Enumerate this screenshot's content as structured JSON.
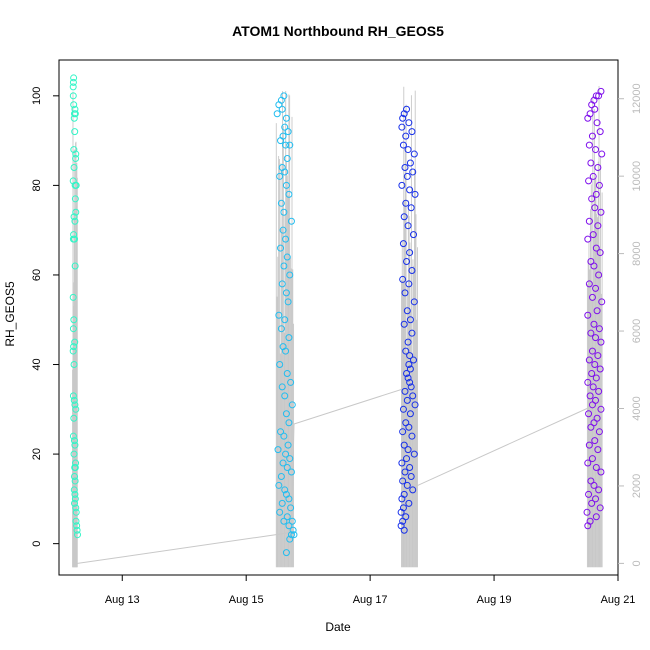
{
  "chart_data": {
    "type": "scatter",
    "title": "ATOM1 Northbound RH_GEOS5",
    "xlabel": "Date",
    "ylabel": "RH_GEOS5",
    "x_axis": {
      "scale": "date",
      "range": [
        "2016-08-11T23:30",
        "2016-08-21T00:00"
      ],
      "ticks": [
        "2016-08-13",
        "2016-08-15",
        "2016-08-17",
        "2016-08-19",
        "2016-08-21"
      ],
      "tick_labels": [
        "Aug 13",
        "Aug 15",
        "Aug 17",
        "Aug 19",
        "Aug 21"
      ]
    },
    "y_axis": {
      "range": [
        -7,
        108
      ],
      "ticks": [
        0,
        20,
        40,
        60,
        80,
        100
      ]
    },
    "y2_axis": {
      "range": [
        -300,
        13000
      ],
      "ticks": [
        0,
        2000,
        4000,
        6000,
        8000,
        10000,
        12000
      ],
      "color": "#bbbbbb",
      "series": "altitude profile (gray lines)"
    },
    "grid": false,
    "legend": "none",
    "series": [
      {
        "color": "#33f5c7",
        "time_range": [
          "2016-08-12T05:00",
          "2016-08-12T06:40"
        ],
        "rh_range": [
          2,
          104
        ],
        "points": [
          [
            0.0,
            102
          ],
          [
            0.05,
            103
          ],
          [
            0.1,
            104
          ],
          [
            0.02,
            100
          ],
          [
            0.12,
            98
          ],
          [
            0.3,
            96
          ],
          [
            0.25,
            95
          ],
          [
            0.4,
            97
          ],
          [
            0.5,
            96
          ],
          [
            0.35,
            92
          ],
          [
            0.15,
            88
          ],
          [
            0.6,
            87
          ],
          [
            0.55,
            86
          ],
          [
            0.2,
            84
          ],
          [
            0.0,
            81
          ],
          [
            0.45,
            80
          ],
          [
            0.7,
            80
          ],
          [
            0.5,
            77
          ],
          [
            0.6,
            74
          ],
          [
            0.2,
            73
          ],
          [
            0.4,
            72
          ],
          [
            0.1,
            69
          ],
          [
            0.05,
            68
          ],
          [
            0.3,
            68
          ],
          [
            0.45,
            62
          ],
          [
            0.0,
            55
          ],
          [
            0.15,
            50
          ],
          [
            0.05,
            48
          ],
          [
            0.35,
            45
          ],
          [
            0.1,
            44
          ],
          [
            0.0,
            43
          ],
          [
            0.2,
            40
          ],
          [
            0.05,
            33
          ],
          [
            0.25,
            32
          ],
          [
            0.4,
            31
          ],
          [
            0.6,
            30
          ],
          [
            0.15,
            28
          ],
          [
            0.05,
            24
          ],
          [
            0.3,
            23
          ],
          [
            0.4,
            22
          ],
          [
            0.2,
            20
          ],
          [
            0.55,
            18
          ],
          [
            0.35,
            17
          ],
          [
            0.5,
            17
          ],
          [
            0.3,
            15
          ],
          [
            0.45,
            14
          ],
          [
            0.25,
            12
          ],
          [
            0.4,
            11
          ],
          [
            0.5,
            10
          ],
          [
            0.3,
            9
          ],
          [
            0.6,
            8
          ],
          [
            0.7,
            7
          ],
          [
            0.65,
            5
          ],
          [
            0.8,
            4
          ],
          [
            0.9,
            3
          ],
          [
            1.0,
            2
          ]
        ]
      },
      {
        "color": "#22bdf0",
        "time_range": [
          "2016-08-15T12:00",
          "2016-08-15T18:30"
        ],
        "rh_range": [
          -2,
          100
        ],
        "points": [
          [
            0.0,
            96
          ],
          [
            0.1,
            98
          ],
          [
            0.25,
            99
          ],
          [
            0.4,
            100
          ],
          [
            0.3,
            97
          ],
          [
            0.55,
            95
          ],
          [
            0.45,
            93
          ],
          [
            0.65,
            92
          ],
          [
            0.2,
            90
          ],
          [
            0.35,
            91
          ],
          [
            0.5,
            89
          ],
          [
            0.75,
            89
          ],
          [
            0.6,
            86
          ],
          [
            0.3,
            84
          ],
          [
            0.45,
            83
          ],
          [
            0.15,
            82
          ],
          [
            0.55,
            80
          ],
          [
            0.7,
            78
          ],
          [
            0.25,
            76
          ],
          [
            0.4,
            74
          ],
          [
            0.85,
            72
          ],
          [
            0.35,
            70
          ],
          [
            0.5,
            68
          ],
          [
            0.2,
            66
          ],
          [
            0.6,
            64
          ],
          [
            0.4,
            62
          ],
          [
            0.75,
            60
          ],
          [
            0.3,
            58
          ],
          [
            0.55,
            56
          ],
          [
            0.65,
            54
          ],
          [
            0.1,
            51
          ],
          [
            0.45,
            50
          ],
          [
            0.25,
            48
          ],
          [
            0.7,
            46
          ],
          [
            0.35,
            44
          ],
          [
            0.5,
            43
          ],
          [
            0.15,
            40
          ],
          [
            0.6,
            38
          ],
          [
            0.8,
            36
          ],
          [
            0.3,
            35
          ],
          [
            0.45,
            33
          ],
          [
            0.9,
            31
          ],
          [
            0.55,
            29
          ],
          [
            0.7,
            27
          ],
          [
            0.2,
            25
          ],
          [
            0.4,
            24
          ],
          [
            0.65,
            22
          ],
          [
            0.05,
            21
          ],
          [
            0.5,
            20
          ],
          [
            0.75,
            19
          ],
          [
            0.35,
            18
          ],
          [
            0.6,
            17
          ],
          [
            0.85,
            16
          ],
          [
            0.25,
            15
          ],
          [
            0.1,
            13
          ],
          [
            0.45,
            12
          ],
          [
            0.55,
            11
          ],
          [
            0.7,
            10
          ],
          [
            0.3,
            9
          ],
          [
            0.8,
            8
          ],
          [
            0.15,
            7
          ],
          [
            0.6,
            6
          ],
          [
            0.4,
            5
          ],
          [
            0.9,
            5
          ],
          [
            0.7,
            4
          ],
          [
            0.95,
            3
          ],
          [
            0.85,
            2
          ],
          [
            1.0,
            2
          ],
          [
            0.75,
            1
          ],
          [
            0.55,
            -2
          ]
        ]
      },
      {
        "color": "#1730ea",
        "time_range": [
          "2016-08-17T12:00",
          "2016-08-17T18:00"
        ],
        "rh_range": [
          3,
          98
        ],
        "points": [
          [
            0.05,
            93
          ],
          [
            0.1,
            95
          ],
          [
            0.2,
            96
          ],
          [
            0.35,
            97
          ],
          [
            0.5,
            94
          ],
          [
            0.7,
            92
          ],
          [
            0.3,
            91
          ],
          [
            0.15,
            89
          ],
          [
            0.45,
            88
          ],
          [
            0.85,
            87
          ],
          [
            0.6,
            85
          ],
          [
            0.25,
            84
          ],
          [
            0.75,
            83
          ],
          [
            0.4,
            82
          ],
          [
            0.05,
            80
          ],
          [
            0.55,
            79
          ],
          [
            0.9,
            78
          ],
          [
            0.3,
            76
          ],
          [
            0.65,
            75
          ],
          [
            0.2,
            73
          ],
          [
            0.45,
            71
          ],
          [
            0.8,
            69
          ],
          [
            0.15,
            67
          ],
          [
            0.55,
            65
          ],
          [
            0.35,
            63
          ],
          [
            0.7,
            61
          ],
          [
            0.1,
            59
          ],
          [
            0.5,
            58
          ],
          [
            0.25,
            56
          ],
          [
            0.85,
            54
          ],
          [
            0.4,
            52
          ],
          [
            0.6,
            50
          ],
          [
            0.2,
            49
          ],
          [
            0.7,
            47
          ],
          [
            0.45,
            45
          ],
          [
            0.3,
            43
          ],
          [
            0.55,
            42
          ],
          [
            0.8,
            41
          ],
          [
            0.5,
            40
          ],
          [
            0.6,
            39
          ],
          [
            0.35,
            38
          ],
          [
            0.45,
            37
          ],
          [
            0.55,
            36
          ],
          [
            0.65,
            35
          ],
          [
            0.25,
            34
          ],
          [
            0.75,
            33
          ],
          [
            0.4,
            32
          ],
          [
            0.9,
            31
          ],
          [
            0.15,
            30
          ],
          [
            0.6,
            29
          ],
          [
            0.3,
            27
          ],
          [
            0.5,
            26
          ],
          [
            0.1,
            25
          ],
          [
            0.7,
            24
          ],
          [
            0.2,
            22
          ],
          [
            0.45,
            21
          ],
          [
            0.85,
            20
          ],
          [
            0.35,
            19
          ],
          [
            0.05,
            18
          ],
          [
            0.55,
            17
          ],
          [
            0.25,
            16
          ],
          [
            0.65,
            15
          ],
          [
            0.1,
            14
          ],
          [
            0.4,
            13
          ],
          [
            0.75,
            12
          ],
          [
            0.2,
            11
          ],
          [
            0.05,
            10
          ],
          [
            0.5,
            9
          ],
          [
            0.15,
            8
          ],
          [
            0.0,
            7
          ],
          [
            0.3,
            6
          ],
          [
            0.1,
            5
          ],
          [
            0.0,
            4
          ],
          [
            0.2,
            3
          ]
        ]
      },
      {
        "color": "#7f10ec",
        "time_range": [
          "2016-08-20T12:00",
          "2016-08-20T18:00"
        ],
        "rh_range": [
          4,
          102
        ],
        "points": [
          [
            0.3,
            98
          ],
          [
            0.45,
            99
          ],
          [
            0.6,
            100
          ],
          [
            0.75,
            100
          ],
          [
            0.9,
            101
          ],
          [
            0.5,
            97
          ],
          [
            0.2,
            96
          ],
          [
            0.05,
            95
          ],
          [
            0.65,
            94
          ],
          [
            0.85,
            92
          ],
          [
            0.35,
            91
          ],
          [
            0.15,
            89
          ],
          [
            0.55,
            88
          ],
          [
            0.95,
            87
          ],
          [
            0.25,
            85
          ],
          [
            0.7,
            84
          ],
          [
            0.4,
            82
          ],
          [
            0.1,
            81
          ],
          [
            0.8,
            80
          ],
          [
            0.6,
            78
          ],
          [
            0.3,
            77
          ],
          [
            0.5,
            75
          ],
          [
            0.9,
            74
          ],
          [
            0.15,
            72
          ],
          [
            0.7,
            71
          ],
          [
            0.4,
            69
          ],
          [
            0.05,
            68
          ],
          [
            0.6,
            66
          ],
          [
            0.85,
            65
          ],
          [
            0.25,
            63
          ],
          [
            0.45,
            62
          ],
          [
            0.75,
            60
          ],
          [
            0.15,
            58
          ],
          [
            0.55,
            57
          ],
          [
            0.35,
            55
          ],
          [
            0.95,
            54
          ],
          [
            0.65,
            52
          ],
          [
            0.05,
            51
          ],
          [
            0.45,
            49
          ],
          [
            0.8,
            48
          ],
          [
            0.25,
            47
          ],
          [
            0.55,
            46
          ],
          [
            0.9,
            45
          ],
          [
            0.35,
            43
          ],
          [
            0.7,
            42
          ],
          [
            0.15,
            41
          ],
          [
            0.5,
            40
          ],
          [
            0.85,
            39
          ],
          [
            0.3,
            38
          ],
          [
            0.6,
            37
          ],
          [
            0.05,
            36
          ],
          [
            0.4,
            35
          ],
          [
            0.75,
            34
          ],
          [
            0.2,
            33
          ],
          [
            0.55,
            32
          ],
          [
            0.35,
            31
          ],
          [
            0.9,
            30
          ],
          [
            0.1,
            29
          ],
          [
            0.65,
            28
          ],
          [
            0.45,
            27
          ],
          [
            0.25,
            26
          ],
          [
            0.8,
            25
          ],
          [
            0.5,
            23
          ],
          [
            0.15,
            22
          ],
          [
            0.7,
            21
          ],
          [
            0.35,
            19
          ],
          [
            0.05,
            18
          ],
          [
            0.6,
            17
          ],
          [
            0.9,
            16
          ],
          [
            0.25,
            14
          ],
          [
            0.45,
            13
          ],
          [
            0.75,
            12
          ],
          [
            0.1,
            11
          ],
          [
            0.55,
            10
          ],
          [
            0.3,
            9
          ],
          [
            0.85,
            8
          ],
          [
            0.0,
            7
          ],
          [
            0.6,
            6
          ],
          [
            0.2,
            5
          ],
          [
            0.05,
            4
          ]
        ]
      }
    ],
    "altitude_track": [
      [
        "2016-08-12T06:40",
        0
      ],
      [
        "2016-08-15T17:30",
        800
      ],
      [
        "2016-08-15T18:30",
        3600
      ],
      [
        "2016-08-17T12:30",
        4500
      ],
      [
        "2016-08-17T18:00",
        2000
      ],
      [
        "2016-08-20T12:00",
        4000
      ],
      [
        "2016-08-20T18:00",
        4200
      ]
    ],
    "altitude_profile_bands": [
      [
        "2016-08-12T04:40",
        "2016-08-12T06:40"
      ],
      [
        "2016-08-15T11:30",
        "2016-08-15T18:30"
      ],
      [
        "2016-08-17T12:00",
        "2016-08-17T18:30"
      ],
      [
        "2016-08-20T12:00",
        "2016-08-20T18:00"
      ]
    ]
  }
}
